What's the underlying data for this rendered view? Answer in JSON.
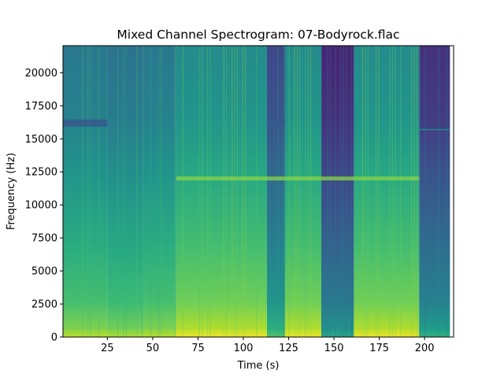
{
  "chart_data": {
    "type": "heatmap",
    "title": "Mixed Channel Spectrogram: 07-Bodyrock.flac",
    "xlabel": "Time (s)",
    "ylabel": "Frequency (Hz)",
    "xlim": [
      0.5,
      216
    ],
    "ylim": [
      0,
      22050
    ],
    "x_ticks": [
      25,
      50,
      75,
      100,
      125,
      150,
      175,
      200
    ],
    "x_tick_labels": [
      "25",
      "50",
      "75",
      "100",
      "125",
      "150",
      "175",
      "200"
    ],
    "y_ticks": [
      0,
      2500,
      5000,
      7500,
      10000,
      12500,
      15000,
      17500,
      20000
    ],
    "y_tick_labels": [
      "0",
      "2500",
      "5000",
      "7500",
      "10000",
      "12500",
      "15000",
      "17500",
      "20000"
    ],
    "colormap": "viridis",
    "audio_end_time": 214,
    "segments": [
      {
        "start": 0.5,
        "end": 25,
        "level": 0.62
      },
      {
        "start": 25,
        "end": 45,
        "level": 0.6
      },
      {
        "start": 45,
        "end": 63,
        "level": 0.62
      },
      {
        "start": 63,
        "end": 113,
        "level": 0.7
      },
      {
        "start": 113,
        "end": 123,
        "level": 0.44
      },
      {
        "start": 123,
        "end": 143,
        "level": 0.7
      },
      {
        "start": 143,
        "end": 161,
        "level": 0.32
      },
      {
        "start": 161,
        "end": 197,
        "level": 0.7
      },
      {
        "start": 197,
        "end": 214,
        "level": 0.36
      }
    ],
    "features": [
      {
        "type": "band",
        "freq": 12000,
        "start": 63,
        "end": 197,
        "level": 0.82
      },
      {
        "type": "dark_band",
        "freq": 16200,
        "start": 0.5,
        "end": 25,
        "level": 0.28
      },
      {
        "type": "dark_band",
        "freq": 16200,
        "start": 113,
        "end": 123,
        "level": 0.28
      },
      {
        "type": "faint_line",
        "freq": 15700,
        "start": 197,
        "end": 214,
        "level": 0.5
      }
    ]
  }
}
